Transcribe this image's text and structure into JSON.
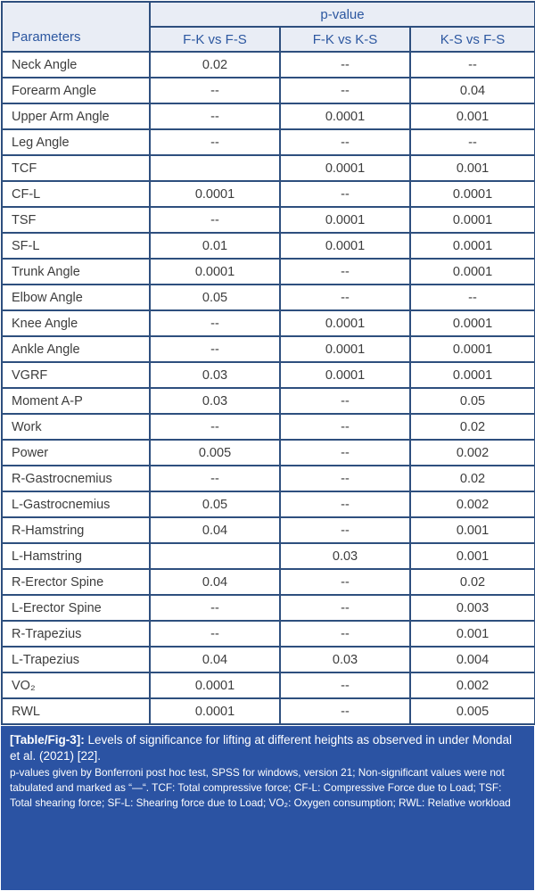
{
  "colors": {
    "border": "#2e4f7e",
    "header_bg": "#e9edf5",
    "header_text": "#2c57a0",
    "caption_bg": "#2b53a3",
    "caption_text": "#ffffff",
    "data_text": "#3d3d3d"
  },
  "table": {
    "header": {
      "parameters_label": "Parameters",
      "pvalue_label": "p-value",
      "columns": [
        "F-K vs F-S",
        "F-K vs K-S",
        "K-S vs F-S"
      ]
    },
    "rows": [
      {
        "param": "Neck Angle",
        "v1": "0.02",
        "v2": "--",
        "v3": "--"
      },
      {
        "param": "Forearm Angle",
        "v1": "--",
        "v2": "--",
        "v3": "0.04"
      },
      {
        "param": "Upper Arm Angle",
        "v1": "--",
        "v2": "0.0001",
        "v3": "0.001"
      },
      {
        "param": "Leg Angle",
        "v1": "--",
        "v2": "--",
        "v3": "--"
      },
      {
        "param": "TCF",
        "v1": "",
        "v2": "0.0001",
        "v3": "0.001"
      },
      {
        "param": "CF-L",
        "v1": "0.0001",
        "v2": "--",
        "v3": "0.0001"
      },
      {
        "param": "TSF",
        "v1": "--",
        "v2": "0.0001",
        "v3": "0.0001"
      },
      {
        "param": "SF-L",
        "v1": "0.01",
        "v2": "0.0001",
        "v3": "0.0001"
      },
      {
        "param": "Trunk Angle",
        "v1": "0.0001",
        "v2": "--",
        "v3": "0.0001"
      },
      {
        "param": "Elbow Angle",
        "v1": "0.05",
        "v2": "--",
        "v3": "--"
      },
      {
        "param": "Knee Angle",
        "v1": "--",
        "v2": "0.0001",
        "v3": "0.0001"
      },
      {
        "param": "Ankle Angle",
        "v1": "--",
        "v2": "0.0001",
        "v3": "0.0001"
      },
      {
        "param": "VGRF",
        "v1": "0.03",
        "v2": "0.0001",
        "v3": "0.0001"
      },
      {
        "param": "Moment A-P",
        "v1": "0.03",
        "v2": "--",
        "v3": "0.05"
      },
      {
        "param": "Work",
        "v1": "--",
        "v2": "--",
        "v3": "0.02"
      },
      {
        "param": "Power",
        "v1": "0.005",
        "v2": "--",
        "v3": "0.002"
      },
      {
        "param": "R-Gastrocnemius",
        "v1": "--",
        "v2": "--",
        "v3": "0.02"
      },
      {
        "param": "L-Gastrocnemius",
        "v1": "0.05",
        "v2": "--",
        "v3": "0.002"
      },
      {
        "param": "R-Hamstring",
        "v1": "0.04",
        "v2": "--",
        "v3": "0.001"
      },
      {
        "param": "L-Hamstring",
        "v1": "",
        "v2": "0.03",
        "v3": "0.001"
      },
      {
        "param": "R-Erector Spine",
        "v1": "0.04",
        "v2": "--",
        "v3": "0.02"
      },
      {
        "param": "L-Erector Spine",
        "v1": "--",
        "v2": "--",
        "v3": "0.003"
      },
      {
        "param": "R-Trapezius",
        "v1": "--",
        "v2": "--",
        "v3": "0.001"
      },
      {
        "param": "L-Trapezius",
        "v1": "0.04",
        "v2": "0.03",
        "v3": "0.004"
      },
      {
        "param": "VO₂",
        "v1": "0.0001",
        "v2": "--",
        "v3": "0.002"
      },
      {
        "param": "RWL",
        "v1": "0.0001",
        "v2": "--",
        "v3": "0.005"
      }
    ]
  },
  "caption": {
    "tag": "[Table/Fig-3]:",
    "title": " Levels of significance for lifting at different heights as observed in under Mondal et al. (2021) [22].",
    "note": "p-values given by Bonferroni post hoc test, SPSS for windows, version 21; Non-significant values were not tabulated and marked as “—“. TCF: Total compressive force; CF-L: Compressive Force due to Load; TSF: Total shearing force; SF-L: Shearing force due to Load; VO₂: Oxygen consumption; RWL: Relative workload"
  }
}
